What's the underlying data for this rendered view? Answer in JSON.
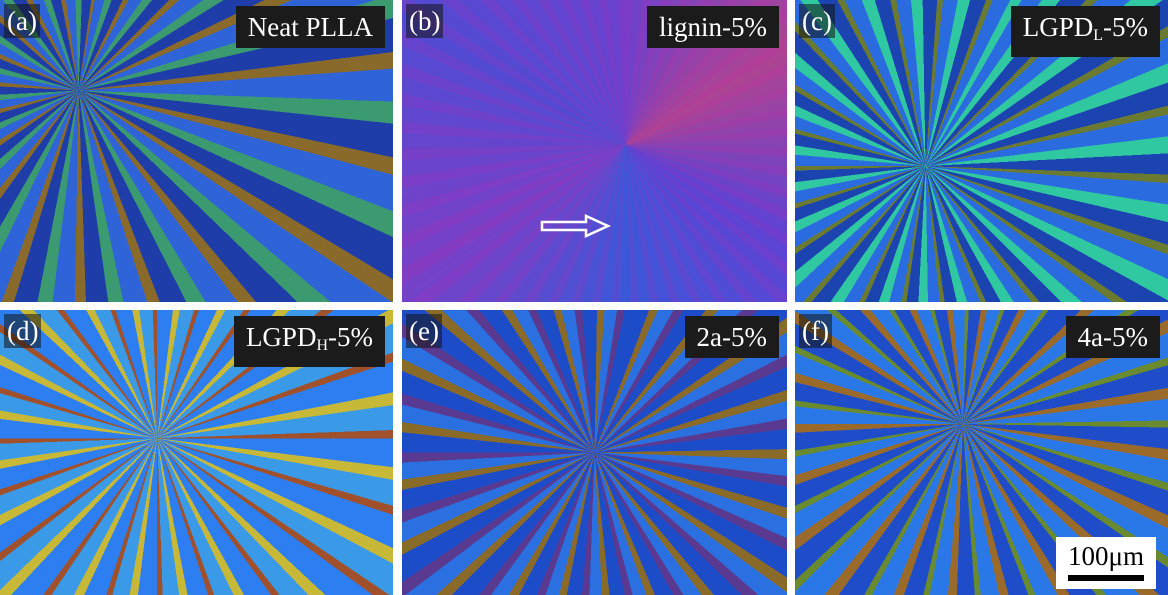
{
  "panels": [
    {
      "letter": "(a)",
      "label": "Neat PLLA"
    },
    {
      "letter": "(b)",
      "label": "lignin-5%"
    },
    {
      "letter": "(c)",
      "label": "LGPD",
      "subscript": "L",
      "suffix": "-5%"
    },
    {
      "letter": "(d)",
      "label": "LGPD",
      "subscript": "H",
      "suffix": "-5%"
    },
    {
      "letter": "(e)",
      "label": "2a-5%"
    },
    {
      "letter": "(f)",
      "label": "4a-5%"
    }
  ],
  "scale_bar": "100μm"
}
